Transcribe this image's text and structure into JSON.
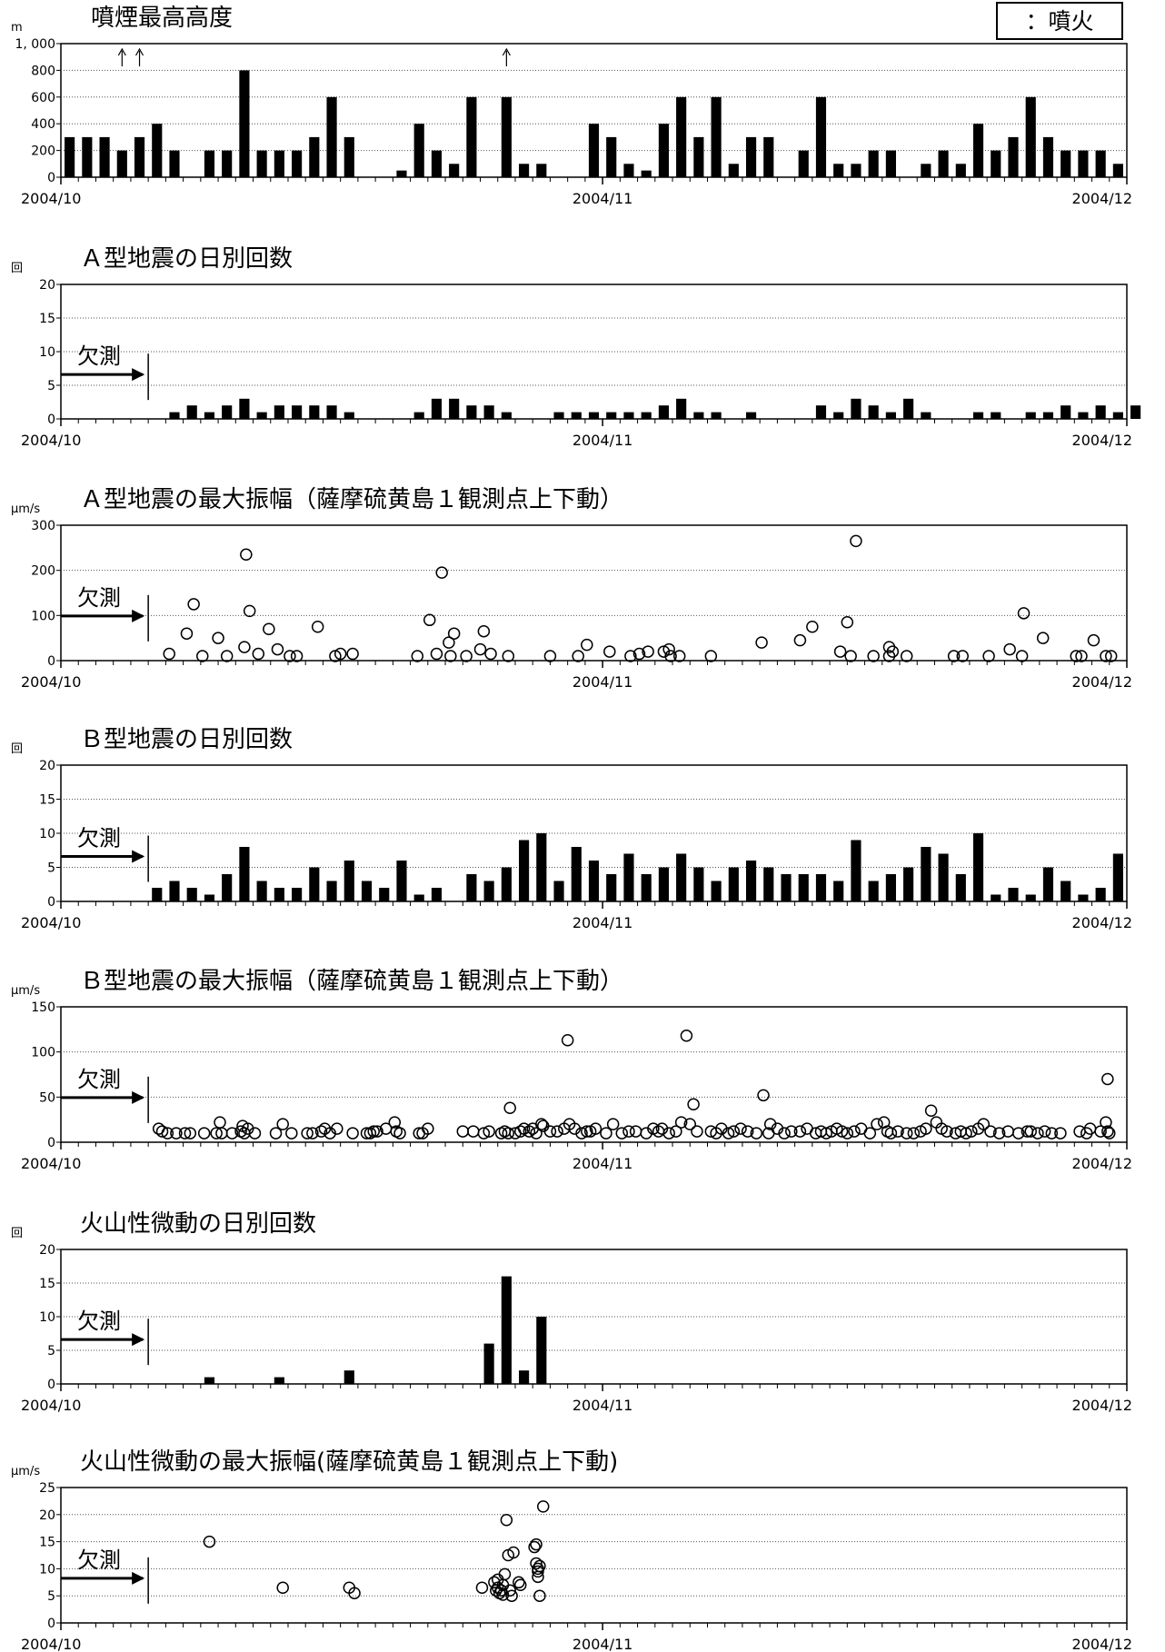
{
  "legend": {
    "label": "：噴火"
  },
  "chart_data": [
    {
      "type": "bar",
      "title": "噴煙最高高度",
      "unit": "m",
      "ylim": [
        0,
        1000
      ],
      "yticks": [
        0,
        200,
        400,
        600,
        800,
        1000
      ],
      "ytick_labels": [
        "0",
        "200",
        "400",
        "600",
        "800",
        "1, 000"
      ],
      "xtick_labels": [
        "2004/10",
        "2004/11",
        "2004/12"
      ],
      "grid": true,
      "values": [
        300,
        300,
        300,
        200,
        300,
        400,
        200,
        0,
        200,
        200,
        800,
        200,
        200,
        200,
        300,
        600,
        300,
        0,
        0,
        50,
        400,
        200,
        100,
        600,
        0,
        600,
        100,
        100,
        0,
        0,
        400,
        300,
        100,
        50,
        400,
        600,
        300,
        600,
        100,
        300,
        300,
        0,
        200,
        600,
        100,
        100,
        200,
        200,
        0,
        100,
        200,
        100,
        400,
        200,
        300,
        600,
        300,
        200,
        200,
        200,
        100
      ],
      "eruption_arrow_days": [
        3,
        4,
        25
      ]
    },
    {
      "type": "bar",
      "title": "Ａ型地震の日別回数",
      "unit": "回",
      "ylim": [
        0,
        20
      ],
      "yticks": [
        0,
        5,
        10,
        15,
        20
      ],
      "ytick_labels": [
        "0",
        "5",
        "10",
        "15",
        "20"
      ],
      "xtick_labels": [
        "2004/10",
        "2004/11",
        "2004/12"
      ],
      "grid": true,
      "missing_label": "欠測",
      "missing_until_day": 5,
      "values": [
        0,
        0,
        0,
        0,
        0,
        0,
        1,
        2,
        1,
        2,
        3,
        1,
        2,
        2,
        2,
        2,
        1,
        0,
        0,
        0,
        1,
        3,
        3,
        2,
        2,
        1,
        0,
        0,
        1,
        1,
        1,
        1,
        1,
        1,
        2,
        3,
        1,
        1,
        0,
        1,
        0,
        0,
        0,
        2,
        1,
        3,
        2,
        1,
        3,
        1,
        0,
        0,
        1,
        1,
        0,
        1,
        1,
        2,
        1,
        2,
        1,
        2
      ]
    },
    {
      "type": "scatter",
      "title": "Ａ型地震の最大振幅（薩摩硫黄島１観測点上下動）",
      "unit": "μm/s",
      "ylim": [
        0,
        300
      ],
      "yticks": [
        0,
        100,
        200,
        300
      ],
      "ytick_labels": [
        "0",
        "100",
        "200",
        "300"
      ],
      "xtick_labels": [
        "2004/10",
        "2004/11",
        "2004/12"
      ],
      "grid": true,
      "missing_label": "欠測",
      "missing_until_day": 5,
      "points": [
        [
          6.2,
          15
        ],
        [
          7.2,
          60
        ],
        [
          7.6,
          125
        ],
        [
          8.1,
          10
        ],
        [
          9,
          50
        ],
        [
          9.5,
          10
        ],
        [
          10.5,
          30
        ],
        [
          10.6,
          235
        ],
        [
          10.8,
          110
        ],
        [
          11.3,
          15
        ],
        [
          11.9,
          70
        ],
        [
          12.4,
          25
        ],
        [
          13.1,
          10
        ],
        [
          13.5,
          10
        ],
        [
          14.7,
          75
        ],
        [
          15.7,
          10
        ],
        [
          16,
          15
        ],
        [
          16.7,
          15
        ],
        [
          20.4,
          10
        ],
        [
          21.1,
          90
        ],
        [
          21.5,
          15
        ],
        [
          21.8,
          195
        ],
        [
          22.2,
          40
        ],
        [
          22.3,
          10
        ],
        [
          22.5,
          60
        ],
        [
          23.2,
          10
        ],
        [
          24,
          25
        ],
        [
          24.2,
          65
        ],
        [
          24.6,
          15
        ],
        [
          25.6,
          10
        ],
        [
          28,
          10
        ],
        [
          29.6,
          10
        ],
        [
          30.1,
          35
        ],
        [
          31.4,
          20
        ],
        [
          32.6,
          10
        ],
        [
          33.1,
          15
        ],
        [
          33.6,
          20
        ],
        [
          34.5,
          20
        ],
        [
          34.8,
          25
        ],
        [
          34.9,
          10
        ],
        [
          35.4,
          10
        ],
        [
          37.2,
          10
        ],
        [
          40.1,
          40
        ],
        [
          42.3,
          45
        ],
        [
          43,
          75
        ],
        [
          44.6,
          20
        ],
        [
          45,
          85
        ],
        [
          45.2,
          10
        ],
        [
          45.5,
          265
        ],
        [
          46.5,
          10
        ],
        [
          47.4,
          30
        ],
        [
          47.4,
          10
        ],
        [
          47.6,
          20
        ],
        [
          48.4,
          10
        ],
        [
          51.1,
          10
        ],
        [
          51.6,
          10
        ],
        [
          53.1,
          10
        ],
        [
          54.3,
          25
        ],
        [
          55,
          10
        ],
        [
          55.1,
          105
        ],
        [
          56.2,
          50
        ],
        [
          58.1,
          10
        ],
        [
          58.4,
          10
        ],
        [
          59.1,
          45
        ],
        [
          59.8,
          10
        ],
        [
          60.1,
          10
        ]
      ]
    },
    {
      "type": "bar",
      "title": "Ｂ型地震の日別回数",
      "unit": "回",
      "ylim": [
        0,
        20
      ],
      "yticks": [
        0,
        5,
        10,
        15,
        20
      ],
      "ytick_labels": [
        "0",
        "5",
        "10",
        "15",
        "20"
      ],
      "xtick_labels": [
        "2004/10",
        "2004/11",
        "2004/12"
      ],
      "grid": true,
      "missing_label": "欠測",
      "missing_until_day": 5,
      "values": [
        0,
        0,
        0,
        0,
        0,
        2,
        3,
        2,
        1,
        4,
        8,
        3,
        2,
        2,
        5,
        3,
        6,
        3,
        2,
        6,
        1,
        2,
        0,
        4,
        3,
        5,
        9,
        10,
        3,
        8,
        6,
        4,
        7,
        4,
        5,
        7,
        5,
        3,
        5,
        6,
        5,
        4,
        4,
        4,
        3,
        9,
        3,
        4,
        5,
        8,
        7,
        4,
        10,
        1,
        2,
        1,
        5,
        3,
        1,
        2,
        7
      ]
    },
    {
      "type": "scatter",
      "title": "Ｂ型地震の最大振幅（薩摩硫黄島１観測点上下動）",
      "unit": "μm/s",
      "ylim": [
        0,
        150
      ],
      "yticks": [
        0,
        50,
        100,
        150
      ],
      "ytick_labels": [
        "0",
        "50",
        "100",
        "150"
      ],
      "xtick_labels": [
        "2004/10",
        "2004/11",
        "2004/12"
      ],
      "grid": true,
      "missing_label": "欠測",
      "missing_until_day": 5,
      "points": [
        [
          5.6,
          15
        ],
        [
          5.8,
          12
        ],
        [
          6.1,
          10
        ],
        [
          6.6,
          10
        ],
        [
          7.1,
          10
        ],
        [
          7.4,
          10
        ],
        [
          8.2,
          10
        ],
        [
          8.9,
          10
        ],
        [
          9.1,
          22
        ],
        [
          9.2,
          10
        ],
        [
          9.8,
          10
        ],
        [
          10.3,
          12
        ],
        [
          10.4,
          18
        ],
        [
          10.5,
          10
        ],
        [
          10.7,
          15
        ],
        [
          11.1,
          10
        ],
        [
          12.3,
          10
        ],
        [
          12.7,
          20
        ],
        [
          13.2,
          10
        ],
        [
          14.1,
          10
        ],
        [
          14.4,
          10
        ],
        [
          14.9,
          12
        ],
        [
          15.1,
          15
        ],
        [
          15.4,
          10
        ],
        [
          15.8,
          15
        ],
        [
          16.7,
          10
        ],
        [
          17.5,
          10
        ],
        [
          17.7,
          10
        ],
        [
          17.9,
          12
        ],
        [
          18.1,
          12
        ],
        [
          18.6,
          15
        ],
        [
          19.1,
          22
        ],
        [
          19.2,
          12
        ],
        [
          19.4,
          10
        ],
        [
          20.5,
          10
        ],
        [
          20.7,
          10
        ],
        [
          21,
          15
        ],
        [
          23,
          12
        ],
        [
          23.6,
          12
        ],
        [
          24.2,
          10
        ],
        [
          24.5,
          12
        ],
        [
          25.2,
          10
        ],
        [
          25.4,
          12
        ],
        [
          25.6,
          10
        ],
        [
          25.7,
          38
        ],
        [
          26,
          10
        ],
        [
          26.3,
          12
        ],
        [
          26.5,
          15
        ],
        [
          26.8,
          12
        ],
        [
          27,
          15
        ],
        [
          27.2,
          10
        ],
        [
          27.5,
          20
        ],
        [
          27.6,
          18
        ],
        [
          28,
          12
        ],
        [
          28.4,
          12
        ],
        [
          28.8,
          15
        ],
        [
          29,
          113
        ],
        [
          29.1,
          20
        ],
        [
          29.4,
          15
        ],
        [
          29.8,
          10
        ],
        [
          30.1,
          12
        ],
        [
          30.3,
          12
        ],
        [
          30.6,
          15
        ],
        [
          31.2,
          10
        ],
        [
          31.6,
          20
        ],
        [
          32.1,
          10
        ],
        [
          32.5,
          12
        ],
        [
          32.9,
          12
        ],
        [
          33.5,
          10
        ],
        [
          33.9,
          15
        ],
        [
          34.2,
          12
        ],
        [
          34.4,
          15
        ],
        [
          34.8,
          10
        ],
        [
          35.2,
          12
        ],
        [
          35.5,
          22
        ],
        [
          35.8,
          118
        ],
        [
          36,
          20
        ],
        [
          36.2,
          42
        ],
        [
          36.4,
          12
        ],
        [
          37.2,
          12
        ],
        [
          37.5,
          10
        ],
        [
          37.8,
          15
        ],
        [
          38.2,
          10
        ],
        [
          38.5,
          12
        ],
        [
          38.9,
          15
        ],
        [
          39.3,
          12
        ],
        [
          39.8,
          10
        ],
        [
          40.2,
          52
        ],
        [
          40.5,
          10
        ],
        [
          40.6,
          20
        ],
        [
          41,
          15
        ],
        [
          41.4,
          10
        ],
        [
          41.8,
          12
        ],
        [
          42.3,
          12
        ],
        [
          42.7,
          15
        ],
        [
          43.2,
          10
        ],
        [
          43.5,
          12
        ],
        [
          43.8,
          10
        ],
        [
          44.1,
          12
        ],
        [
          44.4,
          15
        ],
        [
          44.7,
          12
        ],
        [
          45,
          10
        ],
        [
          45.4,
          12
        ],
        [
          45.8,
          15
        ],
        [
          46.3,
          10
        ],
        [
          46.7,
          20
        ],
        [
          47.1,
          22
        ],
        [
          47.3,
          12
        ],
        [
          47.5,
          10
        ],
        [
          47.9,
          12
        ],
        [
          48.4,
          10
        ],
        [
          48.8,
          10
        ],
        [
          49.2,
          12
        ],
        [
          49.5,
          15
        ],
        [
          49.8,
          35
        ],
        [
          50.1,
          22
        ],
        [
          50.4,
          15
        ],
        [
          50.7,
          12
        ],
        [
          51.2,
          10
        ],
        [
          51.5,
          12
        ],
        [
          51.8,
          10
        ],
        [
          52.1,
          12
        ],
        [
          52.5,
          15
        ],
        [
          52.8,
          20
        ],
        [
          53.2,
          12
        ],
        [
          53.7,
          10
        ],
        [
          54.2,
          12
        ],
        [
          54.8,
          10
        ],
        [
          55.3,
          12
        ],
        [
          55.5,
          12
        ],
        [
          55.9,
          10
        ],
        [
          56.3,
          12
        ],
        [
          56.7,
          10
        ],
        [
          57.2,
          10
        ],
        [
          58.3,
          12
        ],
        [
          58.7,
          10
        ],
        [
          58.9,
          15
        ],
        [
          59.5,
          12
        ],
        [
          59.8,
          22
        ],
        [
          59.9,
          12
        ],
        [
          59.9,
          70
        ],
        [
          60,
          10
        ]
      ]
    },
    {
      "type": "bar",
      "title": "火山性微動の日別回数",
      "unit": "回",
      "ylim": [
        0,
        20
      ],
      "yticks": [
        0,
        5,
        10,
        15,
        20
      ],
      "ytick_labels": [
        "0",
        "5",
        "10",
        "15",
        "20"
      ],
      "xtick_labels": [
        "2004/10",
        "2004/11",
        "2004/12"
      ],
      "grid": true,
      "missing_label": "欠測",
      "missing_until_day": 5,
      "values": [
        0,
        0,
        0,
        0,
        0,
        0,
        0,
        0,
        1,
        0,
        0,
        0,
        1,
        0,
        0,
        0,
        2,
        0,
        0,
        0,
        0,
        0,
        0,
        0,
        6,
        16,
        2,
        10,
        0,
        0,
        0,
        0,
        0,
        0,
        0,
        0,
        0,
        0,
        0,
        0,
        0,
        0,
        0,
        0,
        0,
        0,
        0,
        0,
        0,
        0,
        0,
        0,
        0,
        0,
        0,
        0,
        0,
        0,
        0,
        0,
        0
      ]
    },
    {
      "type": "scatter",
      "title": "火山性微動の最大振幅(薩摩硫黄島１観測点上下動)",
      "unit": "μm/s",
      "ylim": [
        0,
        25
      ],
      "yticks": [
        0,
        5,
        10,
        15,
        20,
        25
      ],
      "ytick_labels": [
        "0",
        "5",
        "10",
        "15",
        "20",
        "25"
      ],
      "xtick_labels": [
        "2004/10",
        "2004/11",
        "2004/12"
      ],
      "grid": true,
      "missing_label": "欠測",
      "missing_until_day": 5,
      "points": [
        [
          8.5,
          15
        ],
        [
          12.7,
          6.5
        ],
        [
          16.5,
          6.5
        ],
        [
          16.8,
          5.5
        ],
        [
          24.1,
          6.5
        ],
        [
          24.8,
          7.5
        ],
        [
          24.9,
          6
        ],
        [
          25,
          8
        ],
        [
          25,
          6.5
        ],
        [
          25.1,
          5.5
        ],
        [
          25.2,
          6
        ],
        [
          25.3,
          7
        ],
        [
          25.3,
          5.2
        ],
        [
          25.4,
          9
        ],
        [
          25.5,
          19
        ],
        [
          25.6,
          12.5
        ],
        [
          25.7,
          6
        ],
        [
          25.8,
          5
        ],
        [
          25.9,
          13
        ],
        [
          26.2,
          7.5
        ],
        [
          26.3,
          7
        ],
        [
          27.1,
          14
        ],
        [
          27.2,
          14.5
        ],
        [
          27.2,
          11
        ],
        [
          27.3,
          10
        ],
        [
          27.3,
          9.5
        ],
        [
          27.3,
          8.5
        ],
        [
          27.4,
          10.5
        ],
        [
          27.4,
          5
        ],
        [
          27.6,
          21.5
        ]
      ]
    }
  ]
}
